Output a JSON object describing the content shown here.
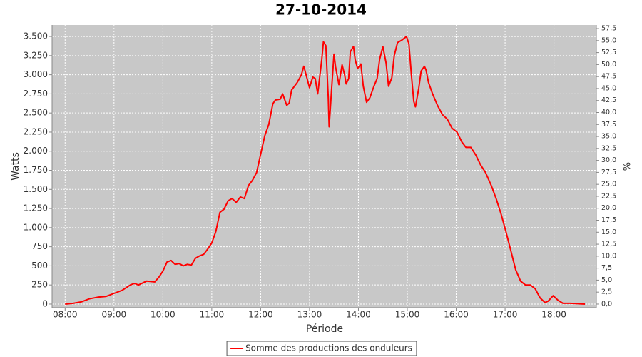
{
  "chart_data": {
    "type": "line",
    "title": "27-10-2014",
    "xlabel": "Période",
    "ylabel": "Watts",
    "y2label": "%",
    "x": [
      "08:00",
      "08:10",
      "08:20",
      "08:30",
      "08:40",
      "08:50",
      "09:00",
      "09:10",
      "09:20",
      "09:25",
      "09:30",
      "09:40",
      "09:50",
      "09:55",
      "10:00",
      "10:05",
      "10:10",
      "10:15",
      "10:20",
      "10:25",
      "10:30",
      "10:35",
      "10:40",
      "10:45",
      "10:50",
      "10:55",
      "11:00",
      "11:05",
      "11:10",
      "11:15",
      "11:20",
      "11:25",
      "11:30",
      "11:35",
      "11:40",
      "11:45",
      "11:50",
      "11:55",
      "12:00",
      "12:05",
      "12:10",
      "12:15",
      "12:18",
      "12:24",
      "12:27",
      "12:32",
      "12:35",
      "12:38",
      "12:45",
      "12:50",
      "12:53",
      "13:00",
      "13:04",
      "13:07",
      "13:10",
      "13:15",
      "13:17",
      "13:20",
      "13:23",
      "13:24",
      "13:27",
      "13:30",
      "13:32",
      "13:36",
      "13:40",
      "13:43",
      "13:45",
      "13:48",
      "13:50",
      "13:54",
      "13:56",
      "13:59",
      "14:03",
      "14:06",
      "14:10",
      "14:14",
      "14:19",
      "14:23",
      "14:26",
      "14:30",
      "14:34",
      "14:37",
      "14:41",
      "14:44",
      "14:48",
      "14:53",
      "14:59",
      "15:02",
      "15:05",
      "15:08",
      "15:10",
      "15:14",
      "15:17",
      "15:21",
      "15:23",
      "15:26",
      "15:31",
      "15:37",
      "15:43",
      "15:49",
      "15:55",
      "16:01",
      "16:07",
      "16:12",
      "16:18",
      "16:24",
      "16:30",
      "16:36",
      "16:43",
      "16:49",
      "16:55",
      "17:01",
      "17:07",
      "17:13",
      "17:19",
      "17:25",
      "17:31",
      "17:37",
      "17:43",
      "17:49",
      "17:53",
      "17:59",
      "18:05",
      "18:11",
      "18:20",
      "18:29",
      "18:38"
    ],
    "series": [
      {
        "name": "Somme des productions des onduleurs",
        "color": "#ff0000",
        "values": [
          0,
          10,
          30,
          70,
          90,
          100,
          140,
          180,
          250,
          270,
          250,
          300,
          290,
          350,
          430,
          550,
          570,
          520,
          530,
          500,
          520,
          510,
          600,
          630,
          650,
          720,
          800,
          950,
          1200,
          1240,
          1350,
          1380,
          1330,
          1400,
          1380,
          1550,
          1620,
          1720,
          1960,
          2200,
          2350,
          2620,
          2670,
          2680,
          2750,
          2600,
          2630,
          2800,
          2900,
          3000,
          3110,
          2830,
          2970,
          2950,
          2750,
          3200,
          3430,
          3380,
          2700,
          2320,
          2800,
          3270,
          3100,
          2870,
          3130,
          3000,
          2880,
          2950,
          3300,
          3370,
          3200,
          3080,
          3140,
          2850,
          2640,
          2700,
          2850,
          2950,
          3200,
          3370,
          3150,
          2850,
          2960,
          3250,
          3420,
          3450,
          3500,
          3400,
          3000,
          2650,
          2580,
          2820,
          3050,
          3110,
          3060,
          2900,
          2750,
          2600,
          2480,
          2420,
          2300,
          2250,
          2120,
          2050,
          2050,
          1950,
          1820,
          1720,
          1550,
          1380,
          1180,
          950,
          700,
          450,
          300,
          250,
          250,
          200,
          80,
          20,
          40,
          110,
          50,
          10,
          10,
          5,
          0
        ]
      }
    ],
    "xlim": [
      "07:44",
      "18:52"
    ],
    "xticks": [
      "08:00",
      "09:00",
      "10:00",
      "11:00",
      "12:00",
      "13:00",
      "14:00",
      "15:00",
      "16:00",
      "17:00",
      "18:00"
    ],
    "ylim": [
      -47,
      3650
    ],
    "yticks": [
      0,
      250,
      500,
      750,
      {
        "value": 1000,
        "label": "1.000"
      },
      {
        "value": 1250,
        "label": "1.250"
      },
      {
        "value": 1500,
        "label": "1.500"
      },
      {
        "value": 1750,
        "label": "1.750"
      },
      {
        "value": 2000,
        "label": "2.000"
      },
      {
        "value": 2250,
        "label": "2.250"
      },
      {
        "value": 2500,
        "label": "2.500"
      },
      {
        "value": 2750,
        "label": "2.750"
      },
      {
        "value": 3000,
        "label": "3.000"
      },
      {
        "value": 3250,
        "label": "3.250"
      },
      {
        "value": 3500,
        "label": "3.500"
      }
    ],
    "y2lim": [
      -0.75,
      58.25
    ],
    "y2ticks": [
      {
        "value": 0,
        "label": "0,0"
      },
      {
        "value": 2.5,
        "label": "2,5"
      },
      {
        "value": 5,
        "label": "5,0"
      },
      {
        "value": 7.5,
        "label": "7,5"
      },
      {
        "value": 10,
        "label": "10,0"
      },
      {
        "value": 12.5,
        "label": "12,5"
      },
      {
        "value": 15,
        "label": "15,0"
      },
      {
        "value": 17.5,
        "label": "17,5"
      },
      {
        "value": 20,
        "label": "20,0"
      },
      {
        "value": 22.5,
        "label": "22,5"
      },
      {
        "value": 25,
        "label": "25,0"
      },
      {
        "value": 27.5,
        "label": "27,5"
      },
      {
        "value": 30,
        "label": "30,0"
      },
      {
        "value": 32.5,
        "label": "32,5"
      },
      {
        "value": 35,
        "label": "35,0"
      },
      {
        "value": 37.5,
        "label": "37,5"
      },
      {
        "value": 40,
        "label": "40,0"
      },
      {
        "value": 42.5,
        "label": "42,5"
      },
      {
        "value": 45,
        "label": "45,0"
      },
      {
        "value": 47.5,
        "label": "47,5"
      },
      {
        "value": 50,
        "label": "50,0"
      },
      {
        "value": 52.5,
        "label": "52,5"
      },
      {
        "value": 55,
        "label": "55,0"
      },
      {
        "value": 57.5,
        "label": "57,5"
      }
    ],
    "grid": true,
    "legend": "bottom"
  }
}
